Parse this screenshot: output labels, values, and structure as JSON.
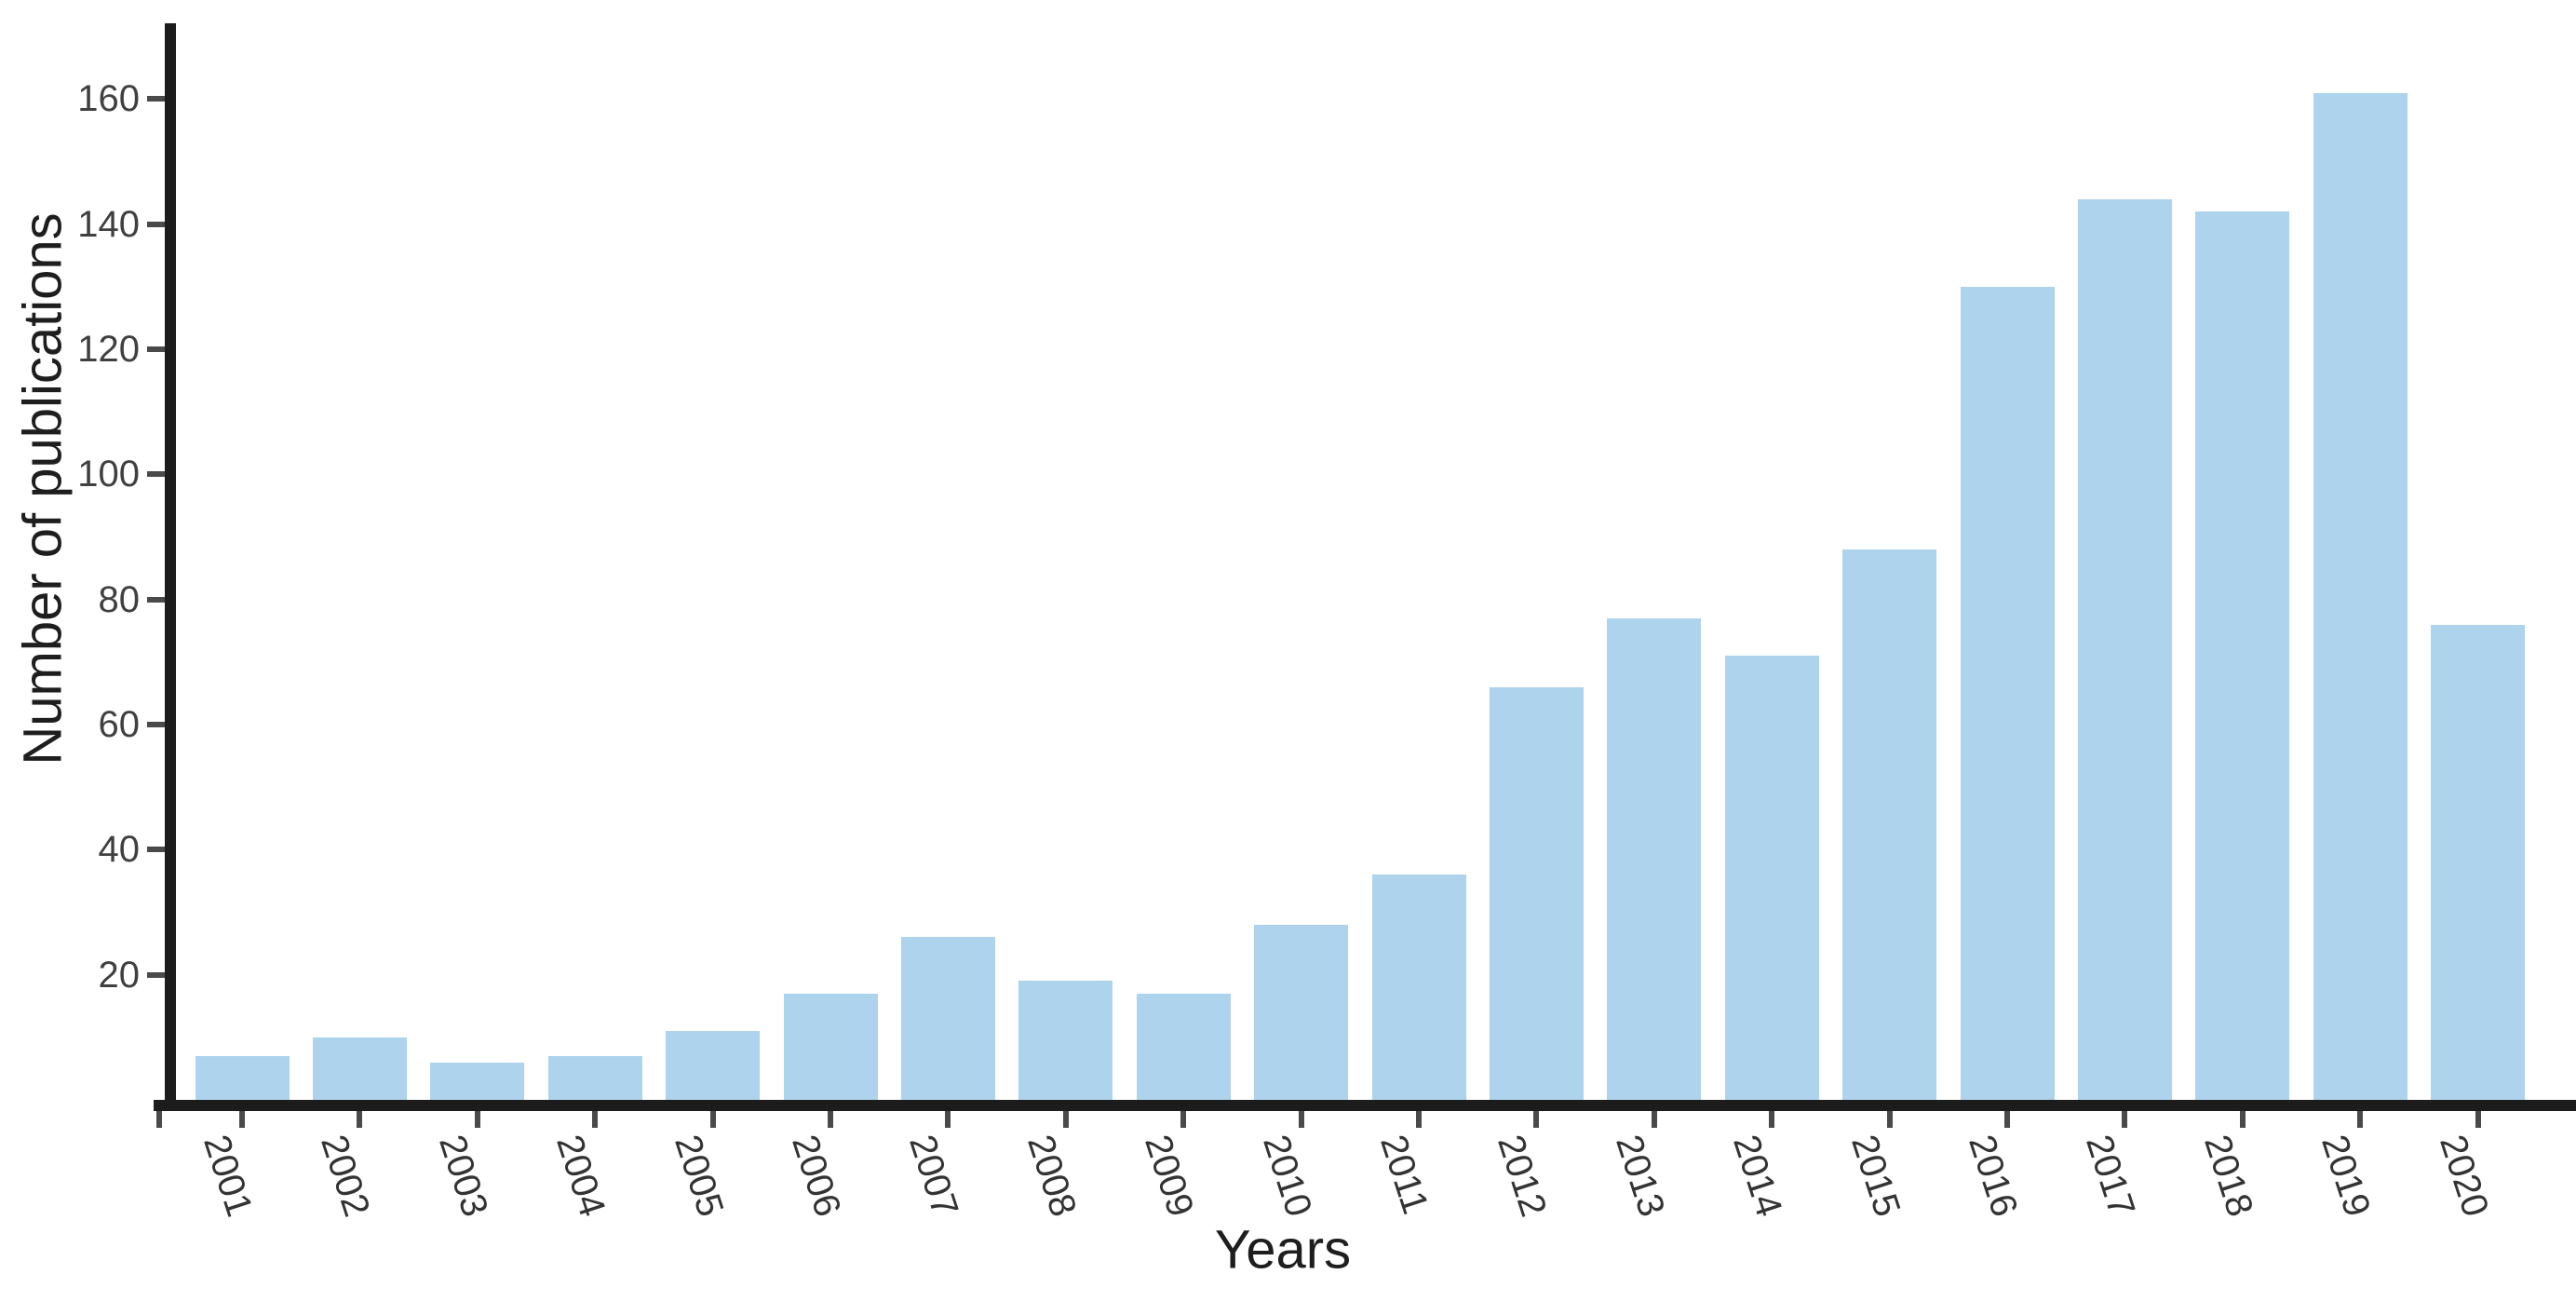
{
  "chart_data": {
    "type": "bar",
    "title": "",
    "categories": [
      "2001",
      "2002",
      "2003",
      "2004",
      "2005",
      "2006",
      "2007",
      "2008",
      "2009",
      "2010",
      "2011",
      "2012",
      "2013",
      "2014",
      "2015",
      "2016",
      "2017",
      "2018",
      "2019",
      "2020"
    ],
    "values": [
      7,
      10,
      6,
      7,
      11,
      17,
      26,
      19,
      17,
      28,
      36,
      66,
      77,
      71,
      88,
      130,
      144,
      142,
      161,
      76
    ],
    "xlabel": "Years",
    "ylabel": "Number of publications",
    "ylim": [
      0,
      170
    ],
    "yticks": [
      20,
      40,
      60,
      80,
      100,
      120,
      140,
      160
    ],
    "grid": false,
    "legend_position": "none",
    "bar_color": "#aed3ec",
    "axis_color": "#1c1c1c",
    "tick_color": "#4a4a4a",
    "tick_label_color": "#404040",
    "axis_title_color": "#1e1e1e",
    "background_color": "#ffffff"
  }
}
